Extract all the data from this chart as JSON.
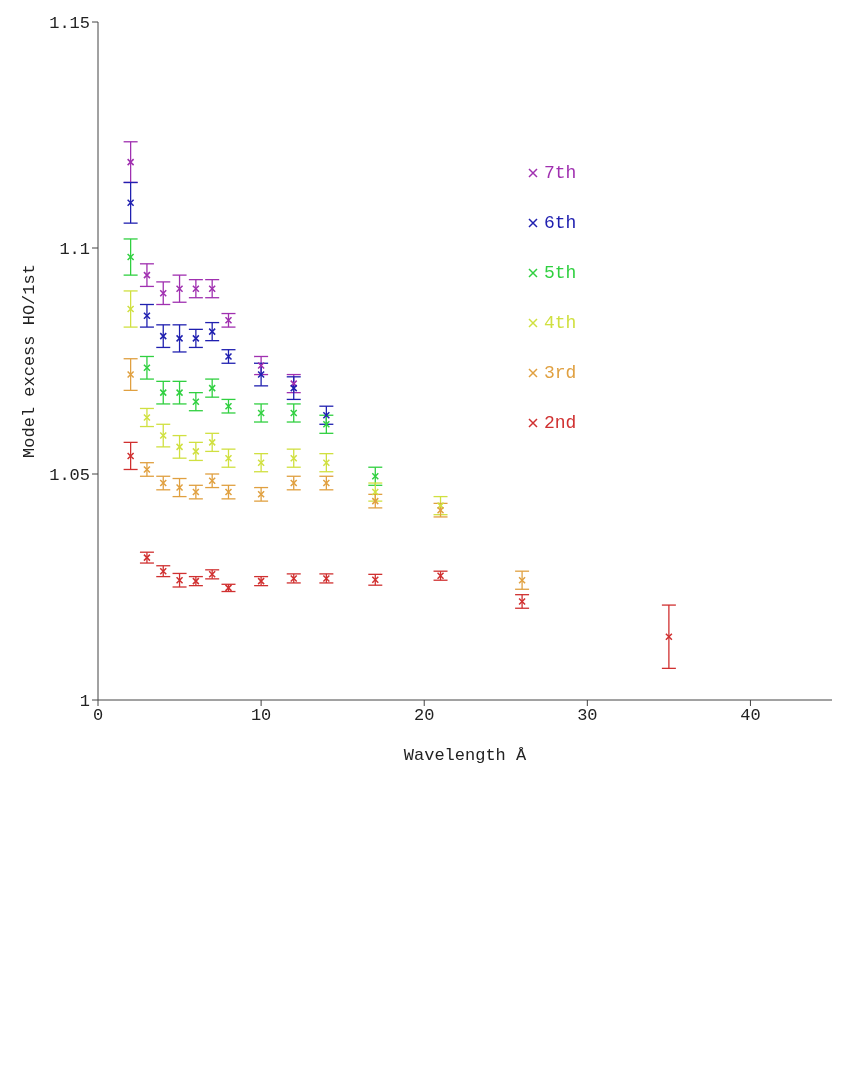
{
  "chart_data": {
    "type": "scatter",
    "xlabel": "Wavelength Å",
    "ylabel": "Model excess HO/1st",
    "xlim": [
      0,
      45
    ],
    "xticks": [
      0,
      10,
      20,
      30,
      40
    ],
    "ylim": [
      1,
      1.15
    ],
    "yticks": [
      1,
      1.05,
      1.1,
      1.15
    ],
    "legend": "top right",
    "marker": "cross",
    "grid": false,
    "series": [
      {
        "name": "7th",
        "color": "#a030b0",
        "x": [
          2,
          3,
          4,
          5,
          6,
          7,
          8,
          10,
          12
        ],
        "values": [
          1.119,
          1.094,
          1.09,
          1.091,
          1.091,
          1.091,
          1.084,
          1.074,
          1.07
        ],
        "errors": [
          0.0045,
          0.0025,
          0.0025,
          0.003,
          0.002,
          0.002,
          0.0015,
          0.002,
          0.002
        ]
      },
      {
        "name": "6th",
        "color": "#2020b0",
        "x": [
          2,
          3,
          4,
          5,
          6,
          7,
          8,
          10,
          12,
          14
        ],
        "values": [
          1.11,
          1.085,
          1.0805,
          1.08,
          1.08,
          1.0815,
          1.076,
          1.072,
          1.069,
          1.063
        ],
        "errors": [
          0.0045,
          0.0025,
          0.0025,
          0.003,
          0.002,
          0.002,
          0.0015,
          0.0025,
          0.0025,
          0.002
        ]
      },
      {
        "name": "5th",
        "color": "#30d040",
        "x": [
          2,
          3,
          4,
          5,
          6,
          7,
          8,
          10,
          12,
          14,
          17
        ],
        "values": [
          1.098,
          1.0735,
          1.068,
          1.068,
          1.066,
          1.069,
          1.065,
          1.0635,
          1.0635,
          1.061,
          1.0495
        ],
        "errors": [
          0.004,
          0.0025,
          0.0025,
          0.0025,
          0.002,
          0.002,
          0.0015,
          0.002,
          0.002,
          0.002,
          0.002
        ]
      },
      {
        "name": "4th",
        "color": "#d0e040",
        "x": [
          2,
          3,
          4,
          5,
          6,
          7,
          8,
          10,
          12,
          14,
          17,
          21
        ],
        "values": [
          1.0865,
          1.0625,
          1.0585,
          1.056,
          1.055,
          1.057,
          1.0535,
          1.0525,
          1.0535,
          1.0525,
          1.046,
          1.043
        ],
        "errors": [
          0.004,
          0.002,
          0.0025,
          0.0025,
          0.002,
          0.002,
          0.002,
          0.002,
          0.002,
          0.002,
          0.002,
          0.002
        ]
      },
      {
        "name": "3rd",
        "color": "#e0a040",
        "x": [
          2,
          3,
          4,
          5,
          6,
          7,
          8,
          10,
          12,
          14,
          17,
          21,
          26
        ],
        "values": [
          1.072,
          1.051,
          1.048,
          1.047,
          1.046,
          1.0485,
          1.046,
          1.0455,
          1.048,
          1.048,
          1.044,
          1.042,
          1.0265
        ],
        "errors": [
          0.0035,
          0.0015,
          0.0015,
          0.002,
          0.0015,
          0.0015,
          0.0015,
          0.0015,
          0.0015,
          0.0015,
          0.0015,
          0.0015,
          0.002
        ]
      },
      {
        "name": "2nd",
        "color": "#d03030",
        "x": [
          2,
          3,
          4,
          5,
          6,
          7,
          8,
          10,
          12,
          14,
          17,
          21,
          26,
          35
        ],
        "values": [
          1.054,
          1.0315,
          1.0285,
          1.0265,
          1.0263,
          1.0278,
          1.0248,
          1.0263,
          1.0269,
          1.0269,
          1.0266,
          1.0275,
          1.0218,
          1.014
        ],
        "errors": [
          0.003,
          0.0012,
          0.0012,
          0.0015,
          0.001,
          0.001,
          0.0008,
          0.001,
          0.001,
          0.001,
          0.0012,
          0.001,
          0.0015,
          0.007
        ]
      }
    ]
  }
}
